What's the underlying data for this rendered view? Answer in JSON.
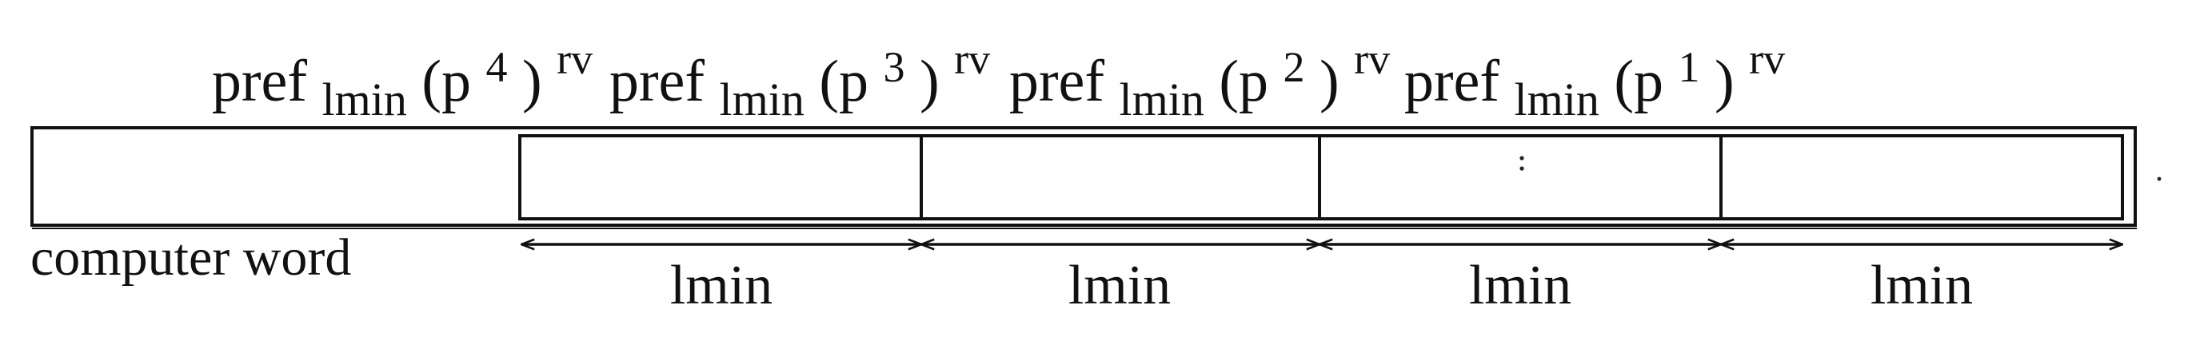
{
  "diagram": {
    "word_caption": "computer word",
    "segments": [
      {
        "label": {
          "base": "pref",
          "subscript": "lmin",
          "argument_open": "(p",
          "argument_sup": "4",
          "argument_close": ")",
          "superscript": "rv"
        },
        "width_label": "lmin"
      },
      {
        "label": {
          "base": "pref",
          "subscript": "lmin",
          "argument_open": "(p",
          "argument_sup": "3",
          "argument_close": ")",
          "superscript": "rv"
        },
        "width_label": "lmin"
      },
      {
        "label": {
          "base": "pref",
          "subscript": "lmin",
          "argument_open": "(p",
          "argument_sup": "2",
          "argument_close": ")",
          "superscript": "rv"
        },
        "width_label": "lmin"
      },
      {
        "label": {
          "base": "pref",
          "subscript": "lmin",
          "argument_open": "(p",
          "argument_sup": "1",
          "argument_close": ")",
          "superscript": "rv"
        },
        "width_label": "lmin"
      }
    ]
  }
}
